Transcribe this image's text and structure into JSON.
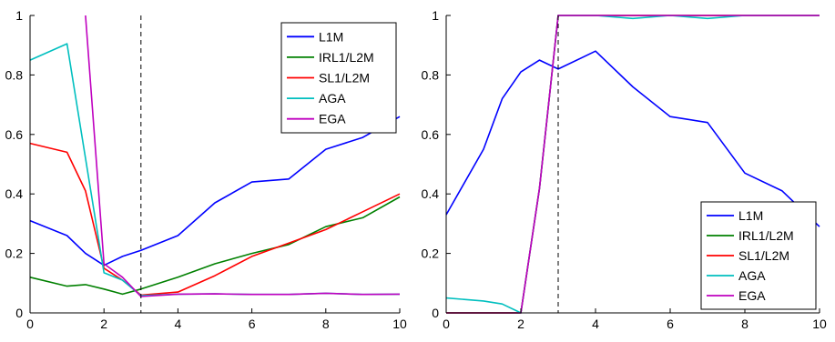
{
  "chart_data": [
    {
      "type": "line",
      "xlim": [
        0,
        10
      ],
      "ylim": [
        0,
        1
      ],
      "xticks": [
        0,
        2,
        4,
        6,
        8,
        10
      ],
      "yticks": [
        0,
        0.2,
        0.4,
        0.6,
        0.8,
        1
      ],
      "xtick_labels": [
        "0",
        "2",
        "4",
        "6",
        "8",
        "10"
      ],
      "ytick_labels": [
        "0",
        "0.2",
        "0.4",
        "0.6",
        "0.8",
        "1"
      ],
      "vline": 3,
      "legend_position": "top-right",
      "grid": false,
      "series": [
        {
          "name": "L1M",
          "color": "#0000ff",
          "x": [
            0,
            1,
            1.5,
            2,
            2.5,
            3,
            4,
            5,
            6,
            7,
            8,
            9,
            10
          ],
          "y": [
            0.31,
            0.26,
            0.2,
            0.16,
            0.19,
            0.21,
            0.26,
            0.37,
            0.44,
            0.45,
            0.55,
            0.59,
            0.66
          ]
        },
        {
          "name": "IRL1/L2M",
          "color": "#008000",
          "x": [
            0,
            1,
            1.5,
            2,
            2.5,
            3,
            4,
            5,
            6,
            7,
            8,
            9,
            10
          ],
          "y": [
            0.12,
            0.09,
            0.095,
            0.08,
            0.063,
            0.08,
            0.12,
            0.165,
            0.2,
            0.23,
            0.29,
            0.32,
            0.39
          ]
        },
        {
          "name": "SL1/L2M",
          "color": "#ff0000",
          "x": [
            0,
            1,
            1.5,
            2,
            2.5,
            3,
            4,
            5,
            6,
            7,
            8,
            9,
            10
          ],
          "y": [
            0.57,
            0.54,
            0.41,
            0.15,
            0.11,
            0.06,
            0.07,
            0.125,
            0.19,
            0.235,
            0.28,
            0.34,
            0.4
          ]
        },
        {
          "name": "AGA",
          "color": "#00bfbf",
          "x": [
            0,
            1,
            1.5,
            2,
            2.5,
            3,
            4,
            5,
            6,
            7,
            8,
            9,
            10
          ],
          "y": [
            0.85,
            0.905,
            0.52,
            0.135,
            0.11,
            0.058,
            0.063,
            0.064,
            0.062,
            0.062,
            0.066,
            0.062,
            0.063
          ]
        },
        {
          "name": "EGA",
          "color": "#bf00bf",
          "x": [
            1.5,
            2,
            2.5,
            3,
            4,
            5,
            6,
            7,
            8,
            9,
            10
          ],
          "y": [
            1.0,
            0.165,
            0.12,
            0.055,
            0.063,
            0.064,
            0.062,
            0.062,
            0.066,
            0.062,
            0.063
          ]
        }
      ]
    },
    {
      "type": "line",
      "xlim": [
        0,
        10
      ],
      "ylim": [
        0,
        1
      ],
      "xticks": [
        0,
        2,
        4,
        6,
        8,
        10
      ],
      "yticks": [
        0,
        0.2,
        0.4,
        0.6,
        0.8,
        1
      ],
      "xtick_labels": [
        "0",
        "2",
        "4",
        "6",
        "8",
        "10"
      ],
      "ytick_labels": [
        "0",
        "0.2",
        "0.4",
        "0.6",
        "0.8",
        "1"
      ],
      "vline": 3,
      "legend_position": "bottom-right",
      "grid": false,
      "series": [
        {
          "name": "L1M",
          "color": "#0000ff",
          "x": [
            0,
            1,
            1.5,
            2,
            2.5,
            3,
            4,
            5,
            6,
            7,
            8,
            9,
            10
          ],
          "y": [
            0.33,
            0.55,
            0.72,
            0.81,
            0.85,
            0.82,
            0.88,
            0.76,
            0.66,
            0.64,
            0.47,
            0.41,
            0.29
          ]
        },
        {
          "name": "IRL1/L2M",
          "color": "#008000",
          "x": [
            0,
            1,
            1.5,
            2,
            2.5,
            3,
            4,
            5,
            6,
            7,
            8,
            9,
            10
          ],
          "y": [
            0,
            0,
            0,
            0,
            0.42,
            1,
            1,
            1,
            1,
            1,
            1,
            1,
            1
          ]
        },
        {
          "name": "SL1/L2M",
          "color": "#ff0000",
          "x": [
            0,
            1,
            1.5,
            2,
            2.5,
            3,
            4,
            5,
            6,
            7,
            8,
            9,
            10
          ],
          "y": [
            0,
            0,
            0,
            0,
            0.42,
            1,
            1,
            1,
            1,
            1,
            1,
            1,
            1
          ]
        },
        {
          "name": "AGA",
          "color": "#00bfbf",
          "x": [
            0,
            1,
            1.5,
            2,
            2.5,
            3,
            4,
            5,
            6,
            7,
            8,
            9,
            10
          ],
          "y": [
            0.05,
            0.04,
            0.03,
            0,
            0.42,
            1,
            1,
            0.99,
            1,
            0.99,
            1,
            1,
            1
          ]
        },
        {
          "name": "EGA",
          "color": "#bf00bf",
          "x": [
            0,
            1,
            1.5,
            2,
            2.5,
            3,
            4,
            5,
            6,
            7,
            8,
            9,
            10
          ],
          "y": [
            0,
            0,
            0,
            0,
            0.42,
            1,
            1,
            1,
            1,
            1,
            1,
            1,
            1
          ]
        }
      ]
    }
  ]
}
